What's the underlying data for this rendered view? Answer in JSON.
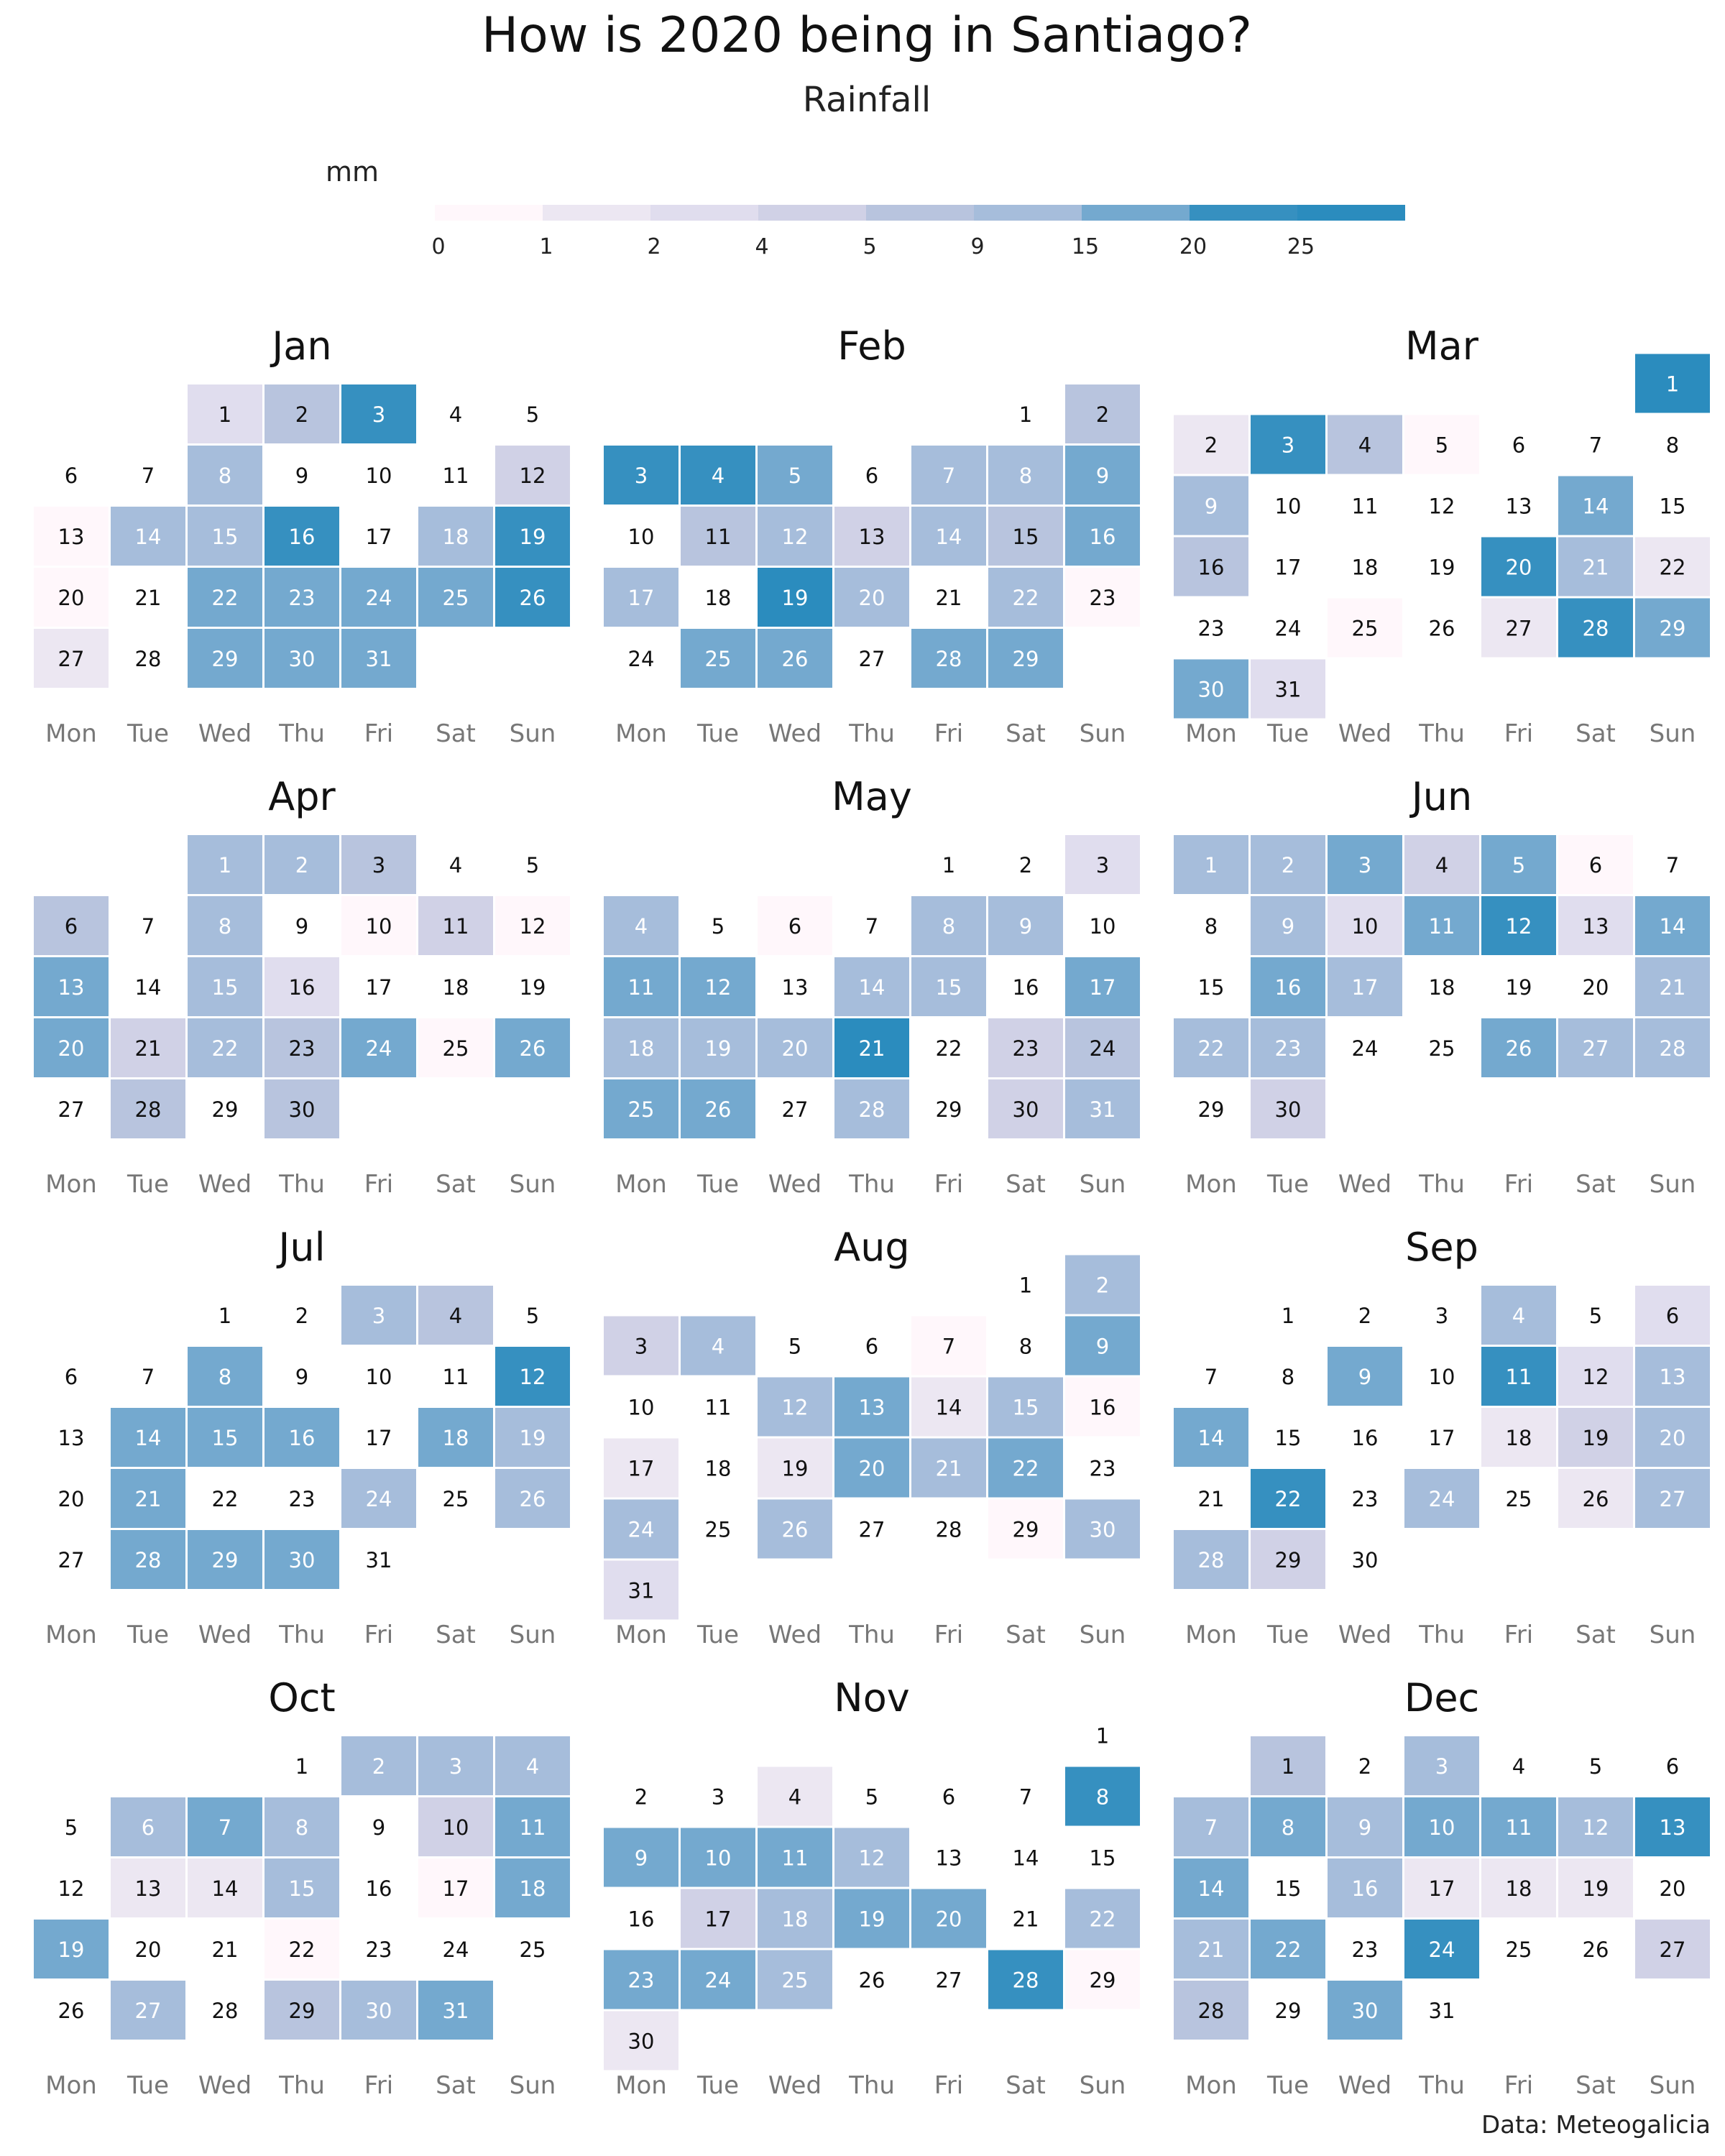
{
  "title": "How is 2020 being in Santiago?",
  "subtitle": "Rainfall",
  "caption": "Data: Meteogalicia",
  "legend": {
    "unit": "mm",
    "breaks": [
      "0",
      "1",
      "2",
      "4",
      "5",
      "9",
      "15",
      "20",
      "25"
    ],
    "colors": [
      "#fff7fb",
      "#ece7f2",
      "#e0ddee",
      "#d0d1e6",
      "#b8c4de",
      "#a6bddb",
      "#74a9cf",
      "#3690c0",
      "#2b8cbe"
    ]
  },
  "chart_data": {
    "type": "heatmap",
    "year": 2020,
    "weekdays": [
      "Mon",
      "Tue",
      "Wed",
      "Thu",
      "Fri",
      "Sat",
      "Sun"
    ],
    "levels_description": "value per day = color bin index 0-9 (0 = white, 1 = 0-1 mm ... 9 = >25 mm)",
    "months": [
      {
        "name": "Jan",
        "first_weekday": 2,
        "days": 31,
        "levels": [
          3,
          5,
          8,
          0,
          0,
          0,
          0,
          6,
          0,
          0,
          0,
          4,
          1,
          6,
          6,
          8,
          0,
          6,
          8,
          1,
          0,
          7,
          7,
          7,
          7,
          8,
          2,
          0,
          7,
          7,
          7
        ]
      },
      {
        "name": "Feb",
        "first_weekday": 5,
        "days": 29,
        "levels": [
          0,
          5,
          8,
          8,
          7,
          0,
          6,
          6,
          7,
          0,
          5,
          6,
          4,
          6,
          5,
          7,
          6,
          0,
          9,
          6,
          0,
          6,
          1,
          0,
          7,
          7,
          0,
          7,
          7
        ]
      },
      {
        "name": "Mar",
        "first_weekday": 6,
        "days": 31,
        "levels": [
          9,
          2,
          8,
          5,
          1,
          0,
          0,
          0,
          6,
          0,
          0,
          0,
          0,
          7,
          0,
          5,
          0,
          0,
          0,
          8,
          6,
          2,
          0,
          0,
          1,
          0,
          2,
          8,
          7,
          7,
          3
        ]
      },
      {
        "name": "Apr",
        "first_weekday": 2,
        "days": 30,
        "levels": [
          6,
          6,
          5,
          0,
          0,
          5,
          0,
          6,
          0,
          1,
          4,
          1,
          7,
          0,
          6,
          3,
          0,
          0,
          0,
          7,
          4,
          6,
          5,
          7,
          1,
          7,
          0,
          5,
          0,
          5
        ]
      },
      {
        "name": "May",
        "first_weekday": 4,
        "days": 31,
        "levels": [
          0,
          0,
          3,
          6,
          0,
          1,
          0,
          6,
          6,
          0,
          7,
          7,
          0,
          6,
          6,
          0,
          7,
          6,
          6,
          6,
          9,
          0,
          4,
          5,
          7,
          7,
          0,
          6,
          0,
          4,
          6
        ]
      },
      {
        "name": "Jun",
        "first_weekday": 0,
        "days": 30,
        "levels": [
          6,
          6,
          7,
          4,
          7,
          1,
          0,
          0,
          6,
          3,
          7,
          8,
          3,
          7,
          0,
          7,
          6,
          0,
          0,
          0,
          6,
          6,
          6,
          0,
          0,
          7,
          6,
          6,
          0,
          4
        ]
      },
      {
        "name": "Jul",
        "first_weekday": 2,
        "days": 31,
        "levels": [
          0,
          0,
          6,
          5,
          0,
          0,
          0,
          7,
          0,
          0,
          0,
          8,
          0,
          7,
          7,
          7,
          0,
          7,
          6,
          0,
          7,
          0,
          0,
          6,
          0,
          6,
          0,
          7,
          7,
          7,
          0
        ]
      },
      {
        "name": "Aug",
        "first_weekday": 5,
        "days": 31,
        "levels": [
          0,
          6,
          4,
          6,
          0,
          0,
          1,
          0,
          7,
          0,
          0,
          6,
          7,
          2,
          6,
          1,
          2,
          0,
          2,
          7,
          6,
          7,
          0,
          6,
          0,
          6,
          0,
          0,
          1,
          6,
          3
        ]
      },
      {
        "name": "Sep",
        "first_weekday": 1,
        "days": 30,
        "levels": [
          0,
          0,
          0,
          6,
          0,
          3,
          0,
          0,
          7,
          0,
          8,
          3,
          6,
          7,
          0,
          0,
          0,
          2,
          4,
          6,
          0,
          8,
          0,
          6,
          0,
          2,
          6,
          6,
          4,
          0
        ]
      },
      {
        "name": "Oct",
        "first_weekday": 3,
        "days": 31,
        "levels": [
          0,
          6,
          6,
          6,
          0,
          6,
          7,
          6,
          0,
          4,
          7,
          0,
          2,
          2,
          6,
          0,
          1,
          7,
          7,
          0,
          0,
          1,
          0,
          0,
          0,
          0,
          6,
          0,
          5,
          6,
          7
        ]
      },
      {
        "name": "Nov",
        "first_weekday": 6,
        "days": 30,
        "levels": [
          0,
          0,
          0,
          2,
          0,
          0,
          0,
          8,
          7,
          7,
          7,
          6,
          0,
          0,
          0,
          0,
          4,
          6,
          7,
          7,
          0,
          6,
          7,
          7,
          6,
          0,
          0,
          8,
          1,
          2
        ]
      },
      {
        "name": "Dec",
        "first_weekday": 1,
        "days": 31,
        "levels": [
          5,
          0,
          6,
          0,
          0,
          0,
          6,
          7,
          6,
          7,
          7,
          6,
          8,
          7,
          0,
          6,
          2,
          2,
          2,
          0,
          6,
          7,
          0,
          8,
          0,
          0,
          4,
          5,
          0,
          7,
          0
        ]
      }
    ]
  }
}
